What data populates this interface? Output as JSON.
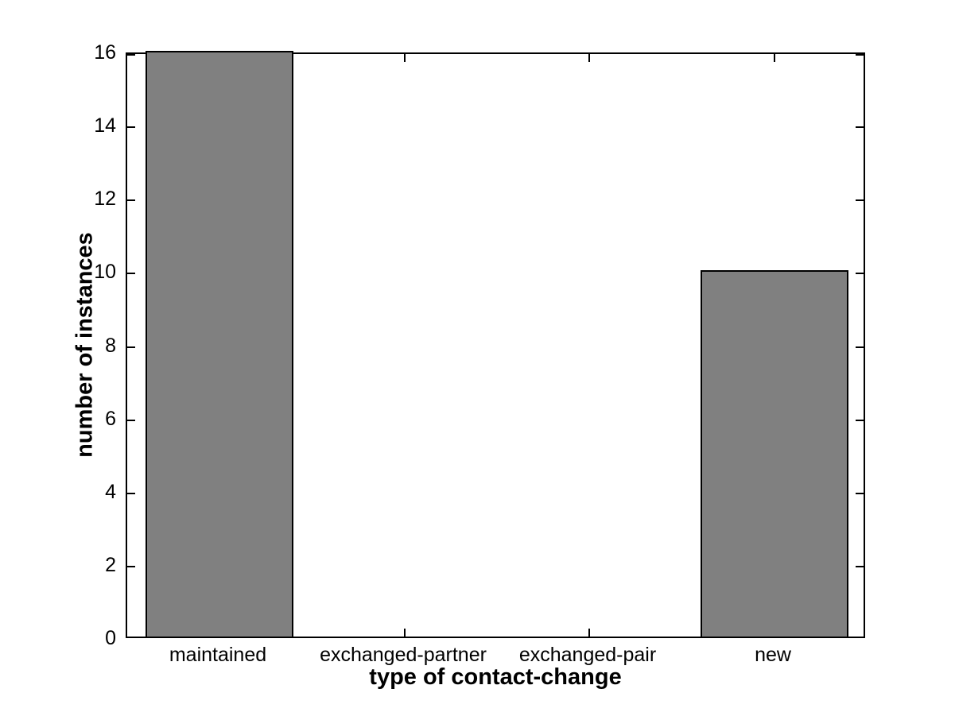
{
  "chart_data": {
    "type": "bar",
    "categories": [
      "maintained",
      "exchanged-partner",
      "exchanged-pair",
      "new"
    ],
    "values": [
      16,
      0,
      0,
      10
    ],
    "title": "",
    "xlabel": "type of contact-change",
    "ylabel": "number of instances",
    "ylim": [
      0,
      16
    ],
    "yticks": [
      0,
      2,
      4,
      6,
      8,
      10,
      12,
      14,
      16
    ],
    "bar_width_fraction": 0.8,
    "grid": false,
    "legend": null,
    "colors": {
      "bar_fill": "#808080",
      "bar_edge": "#000000",
      "axis": "#000000",
      "background": "#ffffff",
      "text": "#000000"
    }
  }
}
